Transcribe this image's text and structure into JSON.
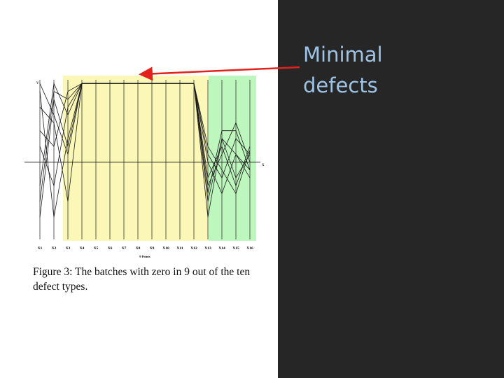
{
  "chart_data": {
    "type": "parallel",
    "categories": [
      "X1",
      "X2",
      "X3",
      "X4",
      "X5",
      "X6",
      "X7",
      "X8",
      "X9",
      "X10",
      "X11",
      "X12",
      "X13",
      "X14",
      "X15",
      "X16"
    ],
    "y_label": "v",
    "x_axis_letter": "x",
    "x_label": "9 Points",
    "ylim": [
      -1,
      1.1
    ],
    "line_color": "#1a1a1a",
    "series": [
      {
        "values": [
          0.9,
          -0.7,
          0.3,
          1,
          1,
          1,
          1,
          1,
          1,
          1,
          1,
          1,
          -0.7,
          0.3,
          0.1,
          -0.1
        ]
      },
      {
        "values": [
          -0.3,
          1.0,
          0.6,
          1,
          1,
          1,
          1,
          1,
          1,
          1,
          1,
          1,
          -0.2,
          0.2,
          -0.3,
          0.2
        ]
      },
      {
        "values": [
          0.4,
          0.2,
          0.9,
          1,
          1,
          1,
          1,
          1,
          1,
          1,
          1,
          1,
          -0.4,
          0.4,
          0.4,
          -0.1
        ]
      },
      {
        "values": [
          -0.7,
          0.8,
          0.2,
          1,
          1,
          1,
          1,
          1,
          1,
          1,
          1,
          1,
          0.1,
          -0.2,
          0.3,
          0.1
        ]
      },
      {
        "values": [
          0.7,
          0.5,
          -0.5,
          1,
          1,
          1,
          1,
          1,
          1,
          1,
          1,
          1,
          -0.5,
          0.3,
          -0.2,
          0.1
        ]
      },
      {
        "values": [
          0.2,
          -0.3,
          0.7,
          1,
          1,
          1,
          1,
          1,
          1,
          1,
          1,
          1,
          0.0,
          -0.4,
          0.1,
          -0.2
        ]
      },
      {
        "values": [
          -0.5,
          0.9,
          0.8,
          1,
          1,
          1,
          1,
          1,
          1,
          1,
          1,
          1,
          -0.3,
          0.1,
          0.5,
          0.0
        ]
      },
      {
        "values": [
          1.0,
          0.6,
          0.1,
          1,
          1,
          1,
          1,
          1,
          1,
          1,
          1,
          1,
          0.2,
          -0.1,
          -0.4,
          0.15
        ]
      }
    ],
    "caption": "Figure 3: The batches with zero in 9 out of the ten defect types.",
    "annotation": "Minimal defects"
  }
}
